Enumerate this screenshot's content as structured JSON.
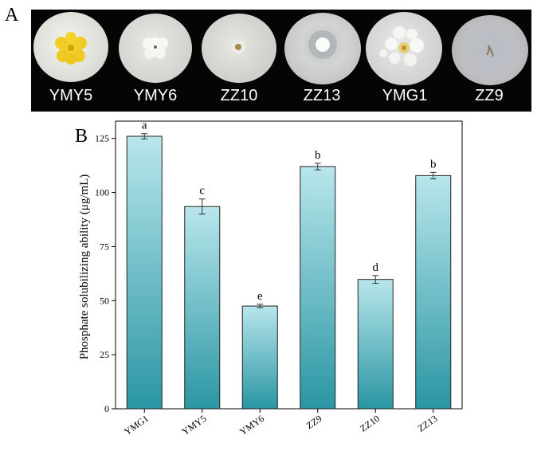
{
  "panel_labels": {
    "a": "A",
    "b": "B"
  },
  "plates": [
    {
      "label": "YMY5"
    },
    {
      "label": "YMY6"
    },
    {
      "label": "ZZ10"
    },
    {
      "label": "ZZ13"
    },
    {
      "label": "YMG1"
    },
    {
      "label": "ZZ9"
    }
  ],
  "chart_data": {
    "type": "bar",
    "title": "",
    "xlabel": "",
    "ylabel": "Phosphate solubilizing ability (μg/mL)",
    "categories": [
      "YMG1",
      "YMY5",
      "YMY6",
      "ZZ9",
      "ZZ10",
      "ZZ13"
    ],
    "values": [
      126,
      93.5,
      47.5,
      112,
      59.8,
      107.8
    ],
    "errors": [
      1.2,
      3.5,
      0.8,
      1.5,
      1.8,
      1.5
    ],
    "significance": [
      "a",
      "c",
      "e",
      "b",
      "d",
      "b"
    ],
    "ylim": [
      0,
      133
    ],
    "yticks": [
      0,
      25,
      50,
      75,
      100,
      125
    ],
    "bar_fill_top": "#b8e6ec",
    "bar_fill_bottom": "#2a96a3"
  }
}
